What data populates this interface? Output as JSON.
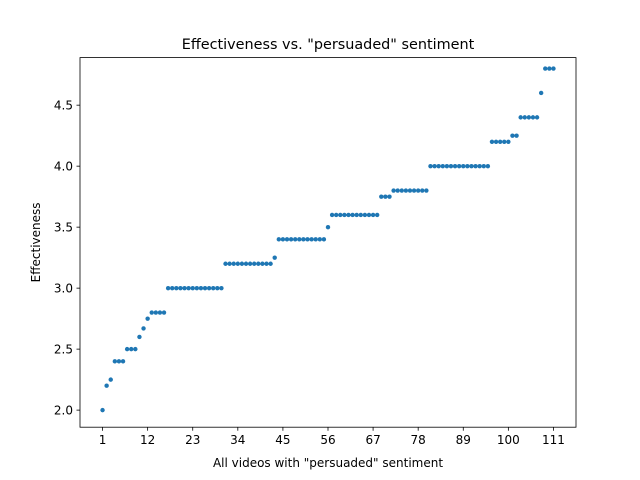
{
  "chart_data": {
    "type": "scatter",
    "title": "Effectiveness vs. \"persuaded\" sentiment",
    "xlabel": "All videos with \"persuaded\" sentiment",
    "ylabel": "Effectiveness",
    "xlim": [
      -4.5,
      116.5
    ],
    "ylim": [
      1.86,
      4.89
    ],
    "xticks": [
      1,
      12,
      23,
      34,
      45,
      56,
      67,
      78,
      89,
      100,
      111
    ],
    "yticks": [
      2.0,
      2.5,
      3.0,
      3.5,
      4.0,
      4.5
    ],
    "ytick_labels": [
      "2.0",
      "2.5",
      "3.0",
      "3.5",
      "4.0",
      "4.5"
    ],
    "grid": false,
    "marker_color": "#1f77b4",
    "x": [
      1,
      2,
      3,
      4,
      5,
      6,
      7,
      8,
      9,
      10,
      11,
      12,
      13,
      14,
      15,
      16,
      17,
      18,
      19,
      20,
      21,
      22,
      23,
      24,
      25,
      26,
      27,
      28,
      29,
      30,
      31,
      32,
      33,
      34,
      35,
      36,
      37,
      38,
      39,
      40,
      41,
      42,
      43,
      44,
      45,
      46,
      47,
      48,
      49,
      50,
      51,
      52,
      53,
      54,
      55,
      56,
      57,
      58,
      59,
      60,
      61,
      62,
      63,
      64,
      65,
      66,
      67,
      68,
      69,
      70,
      71,
      72,
      73,
      74,
      75,
      76,
      77,
      78,
      79,
      80,
      81,
      82,
      83,
      84,
      85,
      86,
      87,
      88,
      89,
      90,
      91,
      92,
      93,
      94,
      95,
      96,
      97,
      98,
      99,
      100,
      101,
      102,
      103,
      104,
      105,
      106,
      107,
      108,
      109,
      110,
      111
    ],
    "y": [
      2.0,
      2.2,
      2.25,
      2.4,
      2.4,
      2.4,
      2.5,
      2.5,
      2.5,
      2.6,
      2.67,
      2.75,
      2.8,
      2.8,
      2.8,
      2.8,
      3.0,
      3.0,
      3.0,
      3.0,
      3.0,
      3.0,
      3.0,
      3.0,
      3.0,
      3.0,
      3.0,
      3.0,
      3.0,
      3.0,
      3.2,
      3.2,
      3.2,
      3.2,
      3.2,
      3.2,
      3.2,
      3.2,
      3.2,
      3.2,
      3.2,
      3.2,
      3.25,
      3.4,
      3.4,
      3.4,
      3.4,
      3.4,
      3.4,
      3.4,
      3.4,
      3.4,
      3.4,
      3.4,
      3.4,
      3.5,
      3.6,
      3.6,
      3.6,
      3.6,
      3.6,
      3.6,
      3.6,
      3.6,
      3.6,
      3.6,
      3.6,
      3.6,
      3.75,
      3.75,
      3.75,
      3.8,
      3.8,
      3.8,
      3.8,
      3.8,
      3.8,
      3.8,
      3.8,
      3.8,
      4.0,
      4.0,
      4.0,
      4.0,
      4.0,
      4.0,
      4.0,
      4.0,
      4.0,
      4.0,
      4.0,
      4.0,
      4.0,
      4.0,
      4.0,
      4.2,
      4.2,
      4.2,
      4.2,
      4.2,
      4.25,
      4.25,
      4.4,
      4.4,
      4.4,
      4.4,
      4.4,
      4.6,
      4.8,
      4.8,
      4.8
    ]
  }
}
